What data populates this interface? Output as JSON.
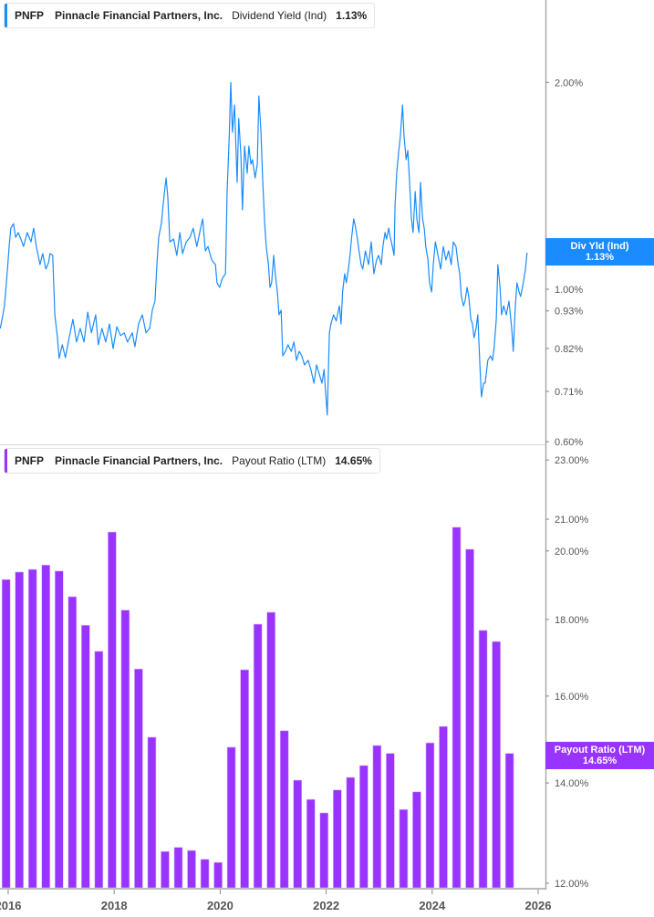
{
  "top_legend": {
    "ticker": "PNFP",
    "company": "Pinnacle Financial Partners, Inc.",
    "metric": "Dividend Yield (Ind)",
    "value": "1.13%"
  },
  "bottom_legend": {
    "ticker": "PNFP",
    "company": "Pinnacle Financial Partners, Inc.",
    "metric": "Payout Ratio (LTM)",
    "value": "14.65%"
  },
  "top_tag": {
    "label": "Div Yld (Ind)",
    "value": "1.13%"
  },
  "bottom_tag": {
    "label": "Payout Ratio (LTM)",
    "value": "14.65%"
  },
  "colors": {
    "dividend_yield": "#1a8cff",
    "payout_ratio": "#9933ff",
    "axis": "#999999"
  },
  "chart_data": [
    {
      "type": "line",
      "series_name": "Dividend Yield (Ind)",
      "y_scale": "log",
      "ylim": [
        0.6,
        2.05
      ],
      "y_ticks": [
        "2.00%",
        "1.00%",
        "0.93%",
        "0.82%",
        "0.71%",
        "0.60%"
      ],
      "y_tick_values": [
        2.0,
        1.0,
        0.93,
        0.82,
        0.71,
        0.6
      ],
      "x_unit": "year",
      "points": [
        [
          2015.85,
          0.877
        ],
        [
          2015.9,
          0.918
        ],
        [
          2015.93,
          0.946
        ],
        [
          2015.98,
          1.053
        ],
        [
          2016.02,
          1.162
        ],
        [
          2016.05,
          1.227
        ],
        [
          2016.1,
          1.246
        ],
        [
          2016.14,
          1.19
        ],
        [
          2016.19,
          1.209
        ],
        [
          2016.24,
          1.183
        ],
        [
          2016.29,
          1.154
        ],
        [
          2016.36,
          1.209
        ],
        [
          2016.43,
          1.172
        ],
        [
          2016.48,
          1.227
        ],
        [
          2016.53,
          1.154
        ],
        [
          2016.6,
          1.086
        ],
        [
          2016.65,
          1.127
        ],
        [
          2016.71,
          1.07
        ],
        [
          2016.76,
          1.093
        ],
        [
          2016.79,
          1.127
        ],
        [
          2016.84,
          1.12
        ],
        [
          2016.88,
          0.918
        ],
        [
          2016.93,
          0.85
        ],
        [
          2016.96,
          0.793
        ],
        [
          2017.02,
          0.83
        ],
        [
          2017.08,
          0.795
        ],
        [
          2017.15,
          0.85
        ],
        [
          2017.22,
          0.904
        ],
        [
          2017.29,
          0.838
        ],
        [
          2017.36,
          0.877
        ],
        [
          2017.43,
          0.838
        ],
        [
          2017.5,
          0.926
        ],
        [
          2017.57,
          0.864
        ],
        [
          2017.65,
          0.918
        ],
        [
          2017.7,
          0.83
        ],
        [
          2017.77,
          0.877
        ],
        [
          2017.84,
          0.838
        ],
        [
          2017.91,
          0.89
        ],
        [
          2017.98,
          0.82
        ],
        [
          2018.05,
          0.882
        ],
        [
          2018.12,
          0.856
        ],
        [
          2018.19,
          0.864
        ],
        [
          2018.25,
          0.838
        ],
        [
          2018.34,
          0.864
        ],
        [
          2018.39,
          0.825
        ],
        [
          2018.46,
          0.89
        ],
        [
          2018.53,
          0.918
        ],
        [
          2018.6,
          0.864
        ],
        [
          2018.67,
          0.877
        ],
        [
          2018.72,
          0.932
        ],
        [
          2018.77,
          0.961
        ],
        [
          2018.81,
          1.103
        ],
        [
          2018.84,
          1.19
        ],
        [
          2018.89,
          1.246
        ],
        [
          2018.94,
          1.366
        ],
        [
          2018.98,
          1.452
        ],
        [
          2019.01,
          1.366
        ],
        [
          2019.05,
          1.172
        ],
        [
          2019.12,
          1.183
        ],
        [
          2019.18,
          1.12
        ],
        [
          2019.24,
          1.209
        ],
        [
          2019.29,
          1.127
        ],
        [
          2019.36,
          1.172
        ],
        [
          2019.43,
          1.19
        ],
        [
          2019.49,
          1.227
        ],
        [
          2019.56,
          1.154
        ],
        [
          2019.63,
          1.227
        ],
        [
          2019.67,
          1.266
        ],
        [
          2019.72,
          1.137
        ],
        [
          2019.77,
          1.154
        ],
        [
          2019.84,
          1.103
        ],
        [
          2019.91,
          1.086
        ],
        [
          2019.94,
          1.022
        ],
        [
          2019.99,
          1.006
        ],
        [
          2020.04,
          1.037
        ],
        [
          2020.1,
          1.053
        ],
        [
          2020.13,
          1.387
        ],
        [
          2020.17,
          1.666
        ],
        [
          2020.2,
          2.0
        ],
        [
          2020.23,
          1.692
        ],
        [
          2020.27,
          1.855
        ],
        [
          2020.32,
          1.43
        ],
        [
          2020.35,
          1.772
        ],
        [
          2020.39,
          1.568
        ],
        [
          2020.42,
          1.305
        ],
        [
          2020.46,
          1.616
        ],
        [
          2020.51,
          1.475
        ],
        [
          2020.54,
          1.616
        ],
        [
          2020.58,
          1.521
        ],
        [
          2020.61,
          1.544
        ],
        [
          2020.66,
          1.452
        ],
        [
          2020.7,
          1.521
        ],
        [
          2020.73,
          1.912
        ],
        [
          2020.77,
          1.692
        ],
        [
          2020.8,
          1.452
        ],
        [
          2020.84,
          1.246
        ],
        [
          2020.87,
          1.154
        ],
        [
          2020.91,
          1.086
        ],
        [
          2020.94,
          1.006
        ],
        [
          2020.97,
          1.022
        ],
        [
          2021.01,
          1.12
        ],
        [
          2021.04,
          1.053
        ],
        [
          2021.08,
          0.991
        ],
        [
          2021.11,
          0.918
        ],
        [
          2021.15,
          0.932
        ],
        [
          2021.18,
          0.8
        ],
        [
          2021.23,
          0.812
        ],
        [
          2021.28,
          0.83
        ],
        [
          2021.34,
          0.812
        ],
        [
          2021.39,
          0.838
        ],
        [
          2021.44,
          0.788
        ],
        [
          2021.49,
          0.812
        ],
        [
          2021.54,
          0.8
        ],
        [
          2021.59,
          0.776
        ],
        [
          2021.66,
          0.788
        ],
        [
          2021.71,
          0.764
        ],
        [
          2021.77,
          0.73
        ],
        [
          2021.82,
          0.776
        ],
        [
          2021.87,
          0.753
        ],
        [
          2021.92,
          0.73
        ],
        [
          2021.96,
          0.764
        ],
        [
          2021.99,
          0.708
        ],
        [
          2022.02,
          0.656
        ],
        [
          2022.06,
          0.864
        ],
        [
          2022.09,
          0.89
        ],
        [
          2022.14,
          0.918
        ],
        [
          2022.19,
          0.899
        ],
        [
          2022.25,
          0.946
        ],
        [
          2022.28,
          0.89
        ],
        [
          2022.31,
          0.991
        ],
        [
          2022.35,
          1.053
        ],
        [
          2022.38,
          1.022
        ],
        [
          2022.42,
          1.07
        ],
        [
          2022.45,
          1.12
        ],
        [
          2022.48,
          1.19
        ],
        [
          2022.52,
          1.266
        ],
        [
          2022.55,
          1.235
        ],
        [
          2022.59,
          1.183
        ],
        [
          2022.62,
          1.137
        ],
        [
          2022.66,
          1.086
        ],
        [
          2022.69,
          1.07
        ],
        [
          2022.74,
          1.137
        ],
        [
          2022.8,
          1.086
        ],
        [
          2022.85,
          1.172
        ],
        [
          2022.9,
          1.053
        ],
        [
          2022.95,
          1.103
        ],
        [
          2022.99,
          1.12
        ],
        [
          2023.04,
          1.086
        ],
        [
          2023.07,
          1.154
        ],
        [
          2023.11,
          1.209
        ],
        [
          2023.14,
          1.183
        ],
        [
          2023.18,
          1.227
        ],
        [
          2023.21,
          1.19
        ],
        [
          2023.25,
          1.154
        ],
        [
          2023.28,
          1.12
        ],
        [
          2023.3,
          1.325
        ],
        [
          2023.33,
          1.475
        ],
        [
          2023.37,
          1.592
        ],
        [
          2023.4,
          1.666
        ],
        [
          2023.44,
          1.855
        ],
        [
          2023.47,
          1.666
        ],
        [
          2023.51,
          1.544
        ],
        [
          2023.54,
          1.592
        ],
        [
          2023.57,
          1.452
        ],
        [
          2023.61,
          1.266
        ],
        [
          2023.64,
          1.209
        ],
        [
          2023.68,
          1.387
        ],
        [
          2023.71,
          1.266
        ],
        [
          2023.75,
          1.209
        ],
        [
          2023.78,
          1.43
        ],
        [
          2023.82,
          1.266
        ],
        [
          2023.85,
          1.227
        ],
        [
          2023.88,
          1.154
        ],
        [
          2023.92,
          1.103
        ],
        [
          2023.95,
          1.022
        ],
        [
          2023.99,
          0.991
        ],
        [
          2024.02,
          1.086
        ],
        [
          2024.06,
          1.172
        ],
        [
          2024.11,
          1.12
        ],
        [
          2024.16,
          1.07
        ],
        [
          2024.21,
          1.154
        ],
        [
          2024.26,
          1.103
        ],
        [
          2024.31,
          1.137
        ],
        [
          2024.36,
          1.086
        ],
        [
          2024.4,
          1.172
        ],
        [
          2024.45,
          1.154
        ],
        [
          2024.49,
          1.086
        ],
        [
          2024.52,
          1.053
        ],
        [
          2024.55,
          0.976
        ],
        [
          2024.59,
          0.946
        ],
        [
          2024.62,
          0.961
        ],
        [
          2024.66,
          1.006
        ],
        [
          2024.69,
          0.976
        ],
        [
          2024.73,
          0.904
        ],
        [
          2024.76,
          0.89
        ],
        [
          2024.79,
          0.85
        ],
        [
          2024.83,
          0.877
        ],
        [
          2024.86,
          0.918
        ],
        [
          2024.9,
          0.776
        ],
        [
          2024.93,
          0.697
        ],
        [
          2024.97,
          0.73
        ],
        [
          2025.0,
          0.73
        ],
        [
          2025.05,
          0.788
        ],
        [
          2025.1,
          0.8
        ],
        [
          2025.14,
          0.788
        ],
        [
          2025.17,
          0.825
        ],
        [
          2025.21,
          0.904
        ],
        [
          2025.24,
          1.086
        ],
        [
          2025.28,
          1.006
        ],
        [
          2025.31,
          0.918
        ],
        [
          2025.35,
          0.946
        ],
        [
          2025.4,
          0.918
        ],
        [
          2025.45,
          0.961
        ],
        [
          2025.5,
          0.877
        ],
        [
          2025.53,
          0.812
        ],
        [
          2025.57,
          0.946
        ],
        [
          2025.6,
          1.022
        ],
        [
          2025.64,
          0.991
        ],
        [
          2025.67,
          0.976
        ],
        [
          2025.72,
          1.022
        ],
        [
          2025.76,
          1.07
        ],
        [
          2025.79,
          1.13
        ]
      ]
    },
    {
      "type": "bar",
      "series_name": "Payout Ratio (LTM)",
      "y_scale": "log",
      "ylim": [
        12.0,
        23.0
      ],
      "y_ticks": [
        "23.00%",
        "21.00%",
        "20.00%",
        "18.00%",
        "16.00%",
        "14.00%",
        "12.00%"
      ],
      "y_tick_values": [
        23,
        21,
        20,
        18,
        16,
        14,
        12
      ],
      "x_ticks": [
        "2016",
        "2018",
        "2020",
        "2022",
        "2024",
        "2026"
      ],
      "x_tick_values": [
        2016,
        2018,
        2020,
        2022,
        2024,
        2026
      ],
      "categories": [
        "2015-Q4",
        "2016-Q1",
        "2016-Q2",
        "2016-Q3",
        "2016-Q4",
        "2017-Q1",
        "2017-Q2",
        "2017-Q3",
        "2017-Q4",
        "2018-Q1",
        "2018-Q2",
        "2018-Q3",
        "2018-Q4",
        "2019-Q1",
        "2019-Q2",
        "2019-Q3",
        "2019-Q4",
        "2020-Q1",
        "2020-Q2",
        "2020-Q3",
        "2020-Q4",
        "2021-Q1",
        "2021-Q2",
        "2021-Q3",
        "2021-Q4",
        "2022-Q1",
        "2022-Q2",
        "2022-Q3",
        "2022-Q4",
        "2023-Q1",
        "2023-Q2",
        "2023-Q3",
        "2023-Q4",
        "2024-Q1",
        "2024-Q2",
        "2024-Q3",
        "2024-Q4",
        "2025-Q1",
        "2025-Q2"
      ],
      "values": [
        19.14,
        19.36,
        19.44,
        19.57,
        19.39,
        18.64,
        17.84,
        17.14,
        20.59,
        18.26,
        16.68,
        15.02,
        12.6,
        12.68,
        12.62,
        12.45,
        12.39,
        14.79,
        16.66,
        17.87,
        18.2,
        15.17,
        14.06,
        13.65,
        13.37,
        13.85,
        14.12,
        14.38,
        14.83,
        14.65,
        13.44,
        13.81,
        14.89,
        15.27,
        20.74,
        20.05,
        17.7,
        17.4,
        14.65
      ]
    }
  ]
}
